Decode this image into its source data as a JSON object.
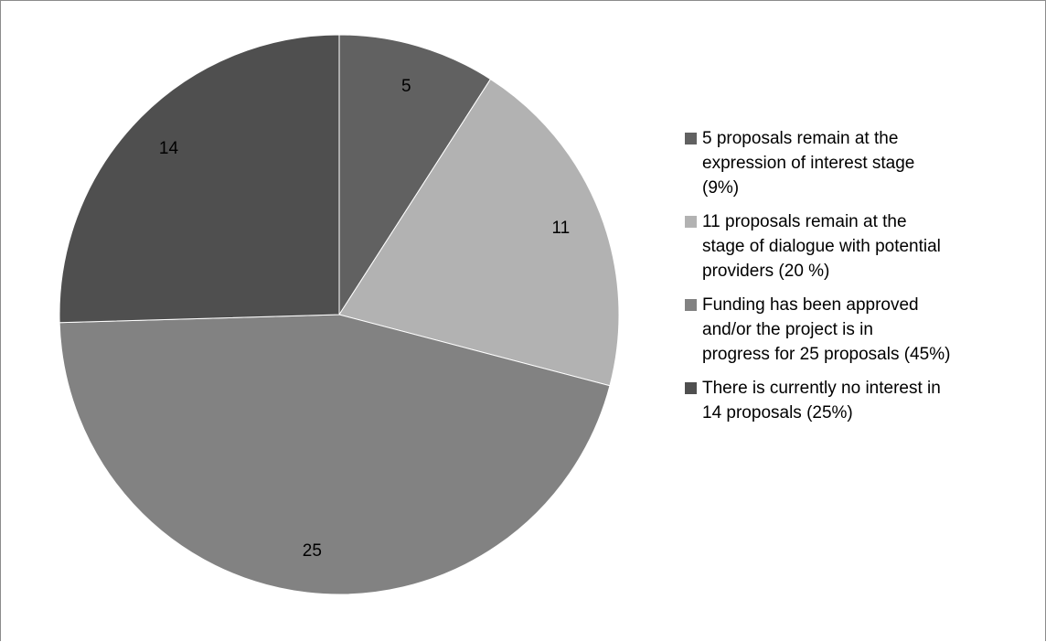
{
  "chart_data": {
    "type": "pie",
    "start_angle_deg": 0,
    "direction": "clockwise",
    "border_color": "#ffffff",
    "slices": [
      {
        "value": 5,
        "label": "5",
        "color": "#616161",
        "legend": "5 proposals remain at the\nexpression of interest stage\n(9%)"
      },
      {
        "value": 11,
        "label": "11",
        "color": "#b2b2b2",
        "legend": "11 proposals remain at the\nstage of dialogue with potential\nproviders (20 %)"
      },
      {
        "value": 25,
        "label": "25",
        "color": "#828282",
        "legend": "Funding has been approved\nand/or the project is in\nprogress for 25 proposals (45%)"
      },
      {
        "value": 14,
        "label": "14",
        "color": "#4f4f4f",
        "legend": "There is currently no interest in\n14 proposals (25%)"
      }
    ],
    "legend_position": "right"
  }
}
